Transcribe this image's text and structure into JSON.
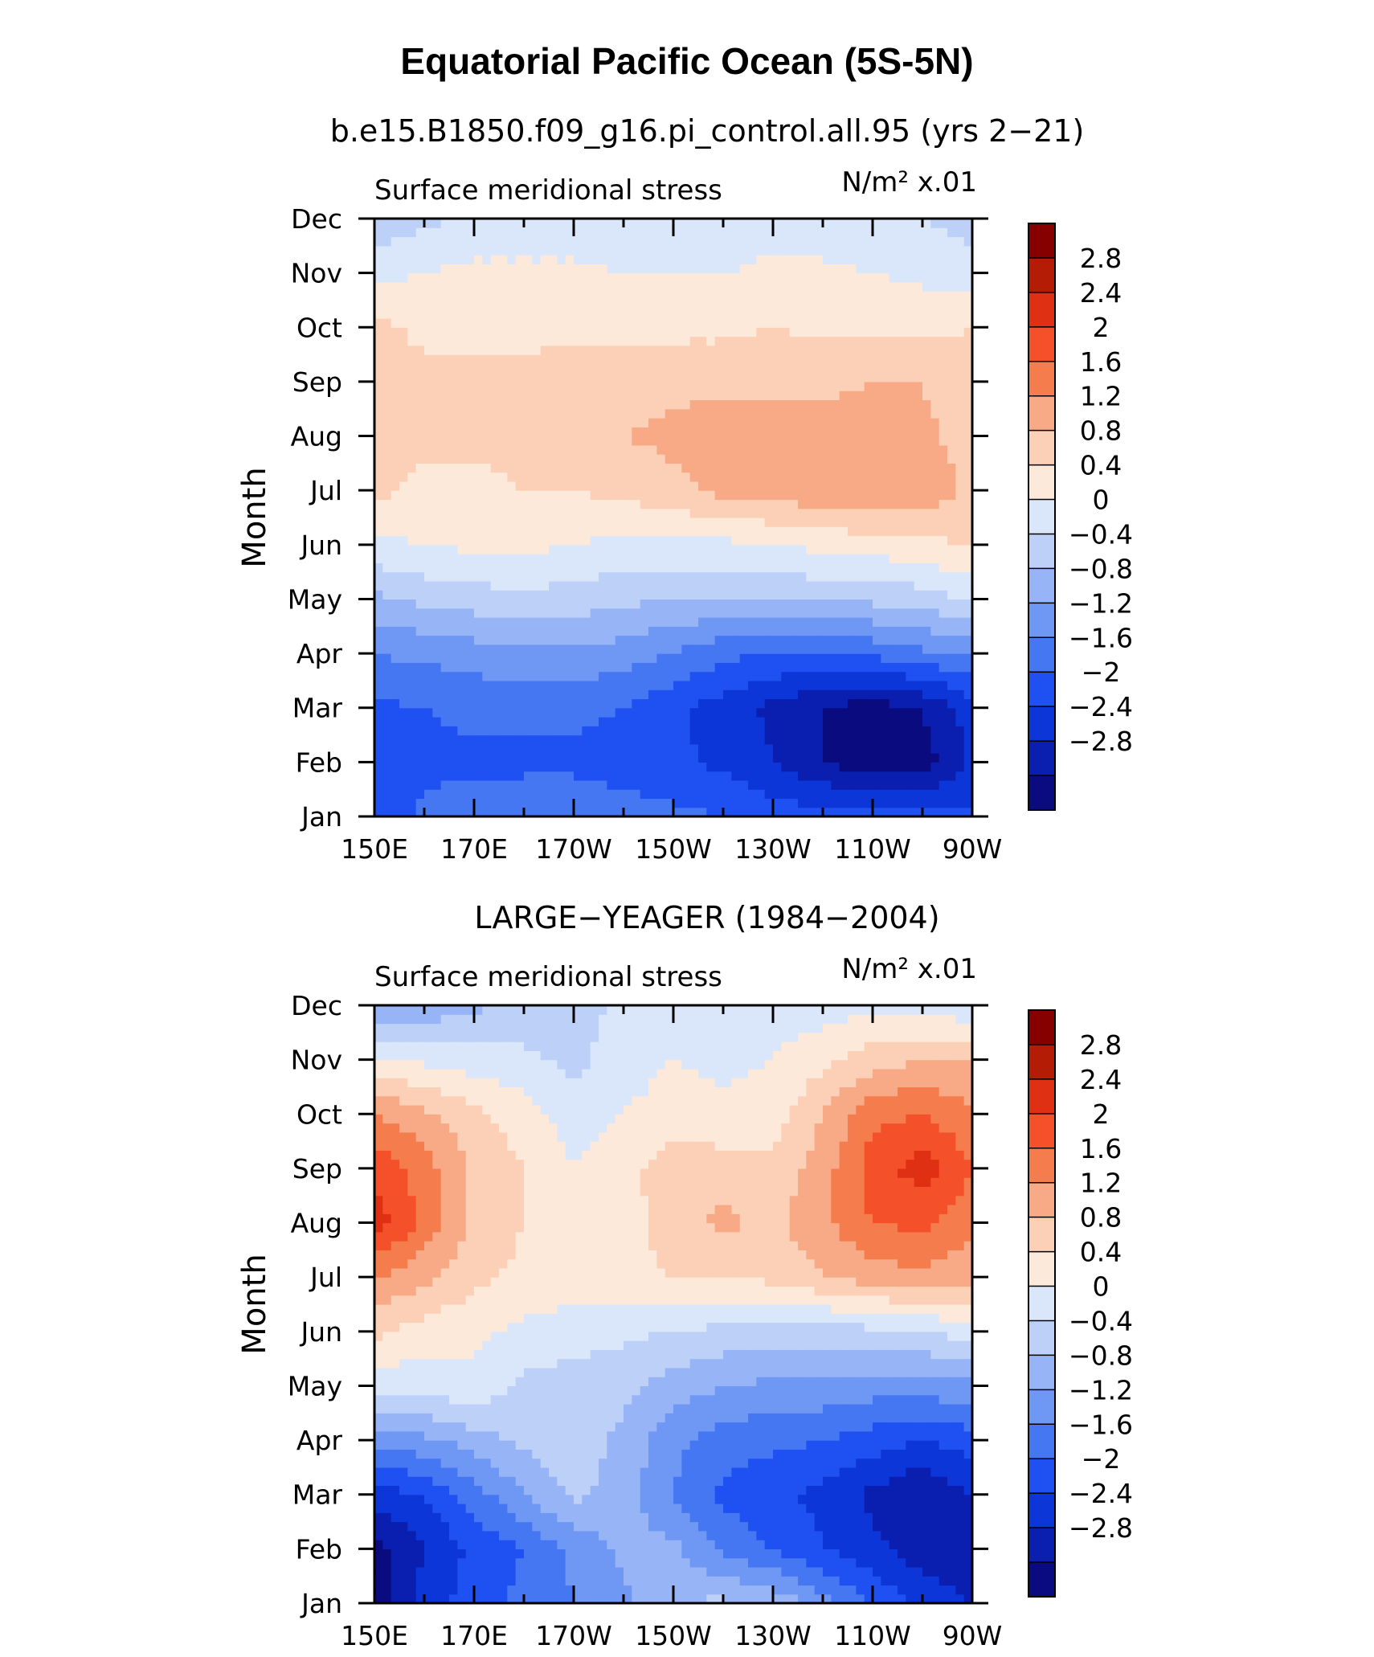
{
  "title": "Equatorial Pacific Ocean (5S-5N)",
  "colorbar_levels": [
    "2.8",
    "2.4",
    "2",
    "1.6",
    "1.2",
    "0.8",
    "0.4",
    "0",
    "−0.4",
    "−0.8",
    "−1.2",
    "−1.6",
    "−2",
    "−2.4",
    "−2.8"
  ],
  "colors": [
    "#0a0b7f",
    "#0a1fb0",
    "#0d36d8",
    "#1f51f2",
    "#4677f3",
    "#6f97f4",
    "#97b5f6",
    "#bcd0f8",
    "#dae7fa",
    "#fde9da",
    "#fbd0b6",
    "#f8a986",
    "#f57c4c",
    "#f4512a",
    "#e03014",
    "#b51c06",
    "#860000"
  ],
  "chart_data": [
    {
      "type": "heatmap",
      "title": "b.e15.B1850.f09_g16.pi_control.all.95 (yrs 2−21)",
      "left_label": "Surface meridional stress",
      "units": "N/m² x.01",
      "xlabel": "",
      "ylabel": "Month",
      "x_ticks": [
        "150E",
        "170E",
        "170W",
        "150W",
        "130W",
        "110W",
        "90W"
      ],
      "y_ticks": [
        "Jan",
        "Feb",
        "Mar",
        "Apr",
        "May",
        "Jun",
        "Jul",
        "Aug",
        "Sep",
        "Oct",
        "Nov",
        "Dec"
      ],
      "x": [
        "150E",
        "160E",
        "170E",
        "180",
        "170W",
        "160W",
        "150W",
        "140W",
        "130W",
        "120W",
        "110W",
        "100W",
        "90W"
      ],
      "y": [
        "Jan",
        "Feb",
        "Mar",
        "Apr",
        "May",
        "Jun",
        "Jul",
        "Aug",
        "Sep",
        "Oct",
        "Nov",
        "Dec"
      ],
      "z": [
        [
          -2.0,
          -1.5,
          -1.4,
          -1.3,
          -1.3,
          -1.4,
          -1.5,
          -1.6,
          -1.8,
          -1.8,
          -1.8,
          -1.9,
          -1.9
        ],
        [
          -1.8,
          -1.7,
          -1.7,
          -1.7,
          -1.7,
          -1.8,
          -1.9,
          -2.1,
          -2.4,
          -2.8,
          -3.1,
          -3.0,
          -2.3
        ],
        [
          -1.7,
          -1.6,
          -1.5,
          -1.5,
          -1.5,
          -1.6,
          -1.9,
          -2.2,
          -2.5,
          -2.8,
          -3.0,
          -2.8,
          -2.2
        ],
        [
          -1.2,
          -1.1,
          -1.0,
          -0.9,
          -0.9,
          -1.0,
          -1.2,
          -1.5,
          -1.6,
          -1.6,
          -1.5,
          -1.3,
          -1.2
        ],
        [
          -0.5,
          -0.3,
          -0.2,
          -0.1,
          -0.2,
          -0.3,
          -0.4,
          -0.4,
          -0.4,
          -0.3,
          -0.3,
          -0.2,
          0.1
        ],
        [
          0.3,
          0.4,
          0.5,
          0.5,
          0.4,
          0.3,
          0.3,
          0.3,
          0.4,
          0.5,
          0.6,
          0.7,
          0.8
        ],
        [
          0.9,
          0.7,
          0.7,
          0.8,
          0.8,
          0.9,
          1.1,
          1.3,
          1.4,
          1.5,
          1.6,
          1.5,
          1.1
        ],
        [
          1.0,
          0.9,
          0.9,
          0.9,
          1.0,
          1.2,
          1.3,
          1.4,
          1.4,
          1.4,
          1.4,
          1.3,
          1.0
        ],
        [
          1.1,
          0.9,
          0.9,
          0.9,
          1.0,
          1.0,
          1.1,
          1.1,
          1.1,
          1.1,
          1.2,
          1.2,
          0.9
        ],
        [
          0.9,
          0.7,
          0.7,
          0.7,
          0.7,
          0.7,
          0.7,
          0.7,
          0.8,
          0.7,
          0.7,
          0.7,
          0.8
        ],
        [
          0.3,
          0.4,
          0.5,
          0.5,
          0.5,
          0.4,
          0.4,
          0.4,
          0.5,
          0.5,
          0.4,
          0.3,
          0.2
        ],
        [
          -0.3,
          -0.1,
          0.1,
          0.1,
          0.1,
          0.1,
          0.1,
          0.1,
          0.2,
          0.1,
          0.1,
          0.0,
          -0.2
        ]
      ],
      "levels": [
        -2.8,
        -2.4,
        -2.0,
        -1.6,
        -1.2,
        -0.8,
        -0.4,
        0,
        0.4,
        0.8,
        1.2,
        1.6,
        2.0,
        2.4,
        2.8
      ]
    },
    {
      "type": "heatmap",
      "title": "LARGE−YEAGER (1984−2004)",
      "left_label": "Surface meridional stress",
      "units": "N/m² x.01",
      "xlabel": "",
      "ylabel": "Month",
      "x_ticks": [
        "150E",
        "170E",
        "170W",
        "150W",
        "130W",
        "110W",
        "90W"
      ],
      "y_ticks": [
        "Jan",
        "Feb",
        "Mar",
        "Apr",
        "May",
        "Jun",
        "Jul",
        "Aug",
        "Sep",
        "Oct",
        "Nov",
        "Dec"
      ],
      "x": [
        "150E",
        "160E",
        "170E",
        "180",
        "170W",
        "160W",
        "150W",
        "140W",
        "130W",
        "120W",
        "110W",
        "100W",
        "90W"
      ],
      "y": [
        "Jan",
        "Feb",
        "Mar",
        "Apr",
        "May",
        "Jun",
        "Jul",
        "Aug",
        "Sep",
        "Oct",
        "Nov",
        "Dec"
      ],
      "z": [
        [
          -3.0,
          -2.2,
          -1.8,
          -1.5,
          -1.2,
          -0.9,
          -0.4,
          -0.3,
          -0.5,
          -1.0,
          -1.6,
          -2.2,
          -2.4
        ],
        [
          -3.0,
          -2.4,
          -1.9,
          -1.6,
          -1.1,
          -0.7,
          -0.7,
          -1.3,
          -1.6,
          -2.0,
          -2.3,
          -2.6,
          -2.6
        ],
        [
          -2.2,
          -2.0,
          -1.4,
          -0.8,
          -0.3,
          -0.6,
          -1.2,
          -1.7,
          -1.9,
          -2.1,
          -2.5,
          -2.8,
          -2.4
        ],
        [
          -1.0,
          -0.9,
          -0.6,
          -0.3,
          -0.2,
          -0.5,
          -1.1,
          -1.4,
          -1.5,
          -1.6,
          -1.8,
          -2.0,
          -1.8
        ],
        [
          0.1,
          0.2,
          0.3,
          -0.1,
          -0.2,
          -0.3,
          -0.6,
          -0.8,
          -0.9,
          -0.9,
          -1.0,
          -1.0,
          -0.9
        ],
        [
          0.9,
          0.6,
          0.5,
          0.3,
          0.2,
          0.1,
          0.0,
          -0.1,
          -0.2,
          -0.2,
          -0.1,
          0.0,
          0.2
        ],
        [
          1.6,
          1.3,
          0.9,
          0.7,
          0.6,
          0.7,
          0.8,
          0.8,
          0.9,
          1.2,
          1.4,
          1.5,
          1.3
        ],
        [
          2.6,
          1.9,
          1.1,
          0.8,
          0.5,
          0.6,
          1.0,
          1.3,
          1.1,
          1.5,
          2.0,
          2.1,
          1.7
        ],
        [
          2.3,
          1.8,
          1.1,
          0.8,
          0.4,
          0.7,
          1.0,
          1.0,
          0.9,
          1.4,
          2.2,
          2.6,
          2.0
        ],
        [
          1.6,
          1.3,
          0.9,
          0.6,
          0.2,
          0.4,
          0.6,
          0.5,
          0.6,
          1.2,
          1.9,
          2.0,
          1.7
        ],
        [
          0.5,
          0.3,
          0.2,
          0.1,
          -0.1,
          0.2,
          0.4,
          0.3,
          0.4,
          0.7,
          1.0,
          1.2,
          1.2
        ],
        [
          -0.9,
          -0.7,
          -0.5,
          -0.3,
          -0.2,
          0.1,
          0.2,
          0.1,
          0.2,
          0.2,
          0.3,
          0.2,
          0.1
        ]
      ],
      "levels": [
        -2.8,
        -2.4,
        -2.0,
        -1.6,
        -1.2,
        -0.8,
        -0.4,
        0,
        0.4,
        0.8,
        1.2,
        1.6,
        2.0,
        2.4,
        2.8
      ]
    }
  ]
}
